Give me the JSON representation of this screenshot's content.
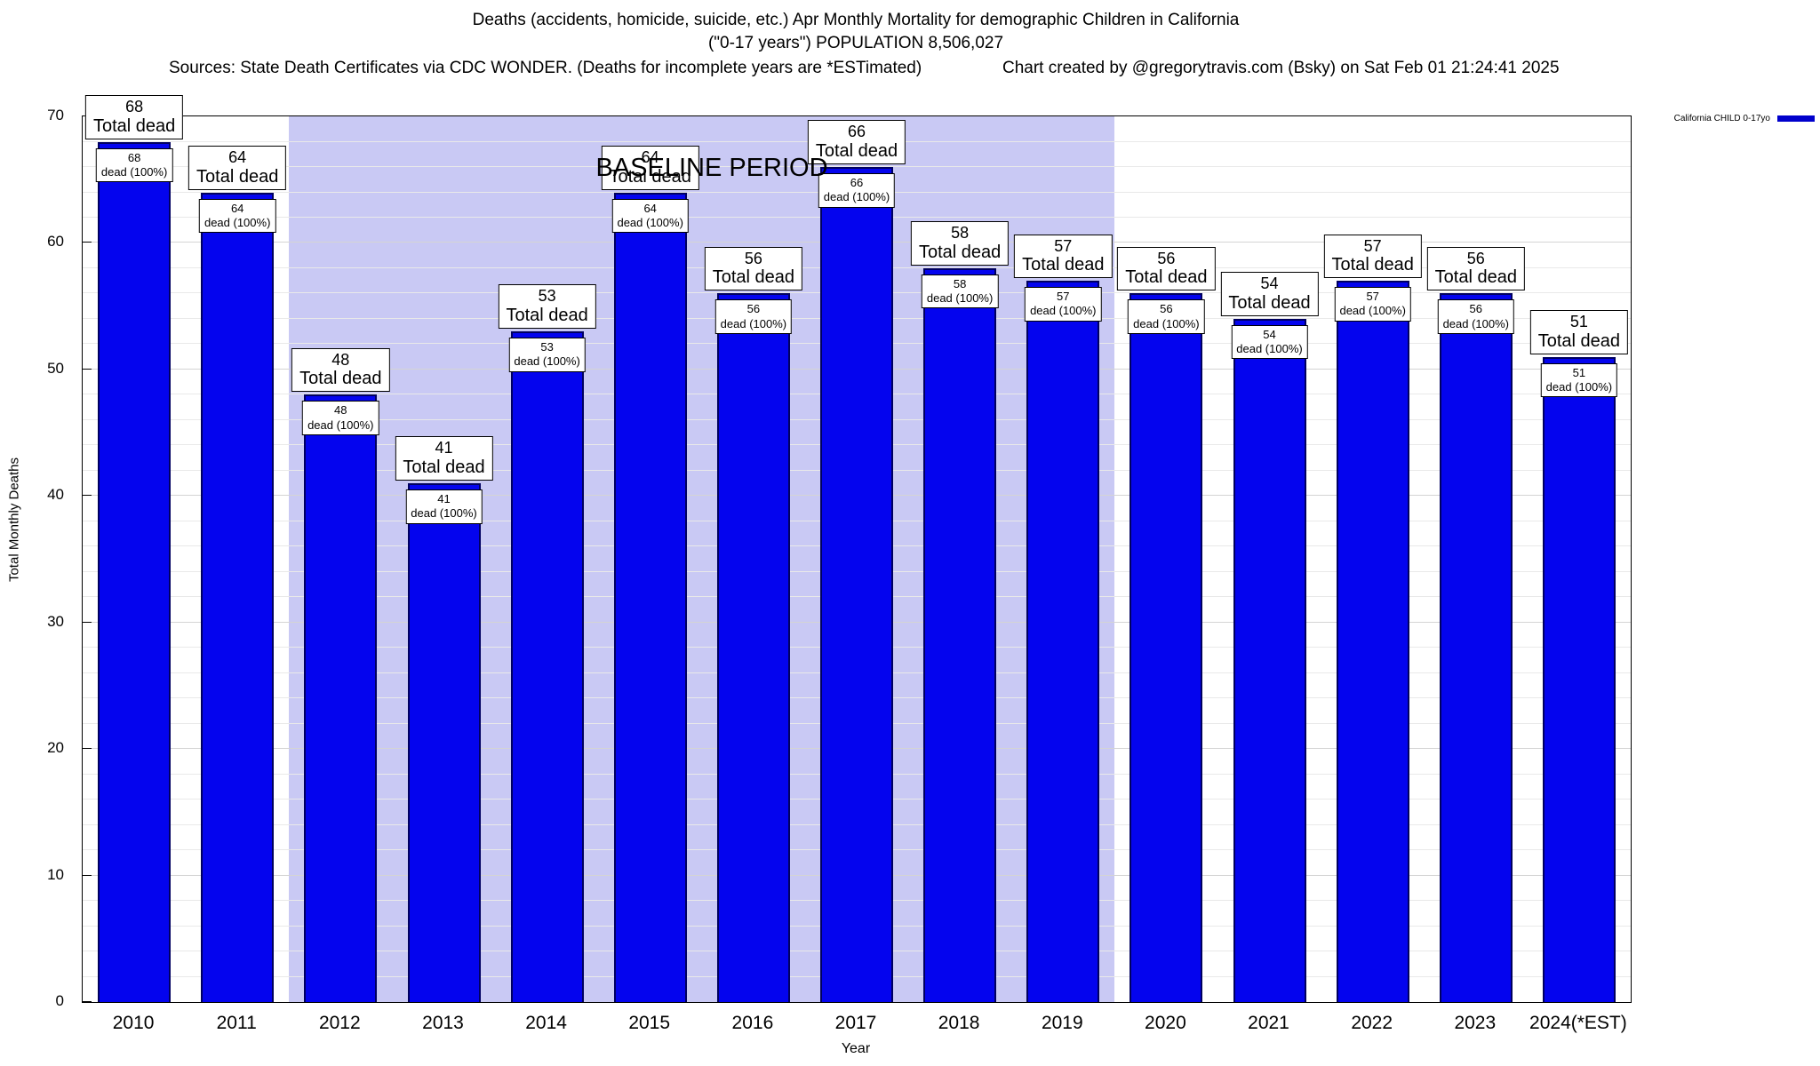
{
  "page": {
    "title": "Deaths (accidents, homicide, suicide, etc.) Apr Monthly Mortality for demographic Children in California",
    "subtitle": "(\"0-17 years\") POPULATION 8,506,027",
    "sources": "Sources: State Death Certificates via CDC WONDER. (Deaths for incomplete years are *ESTimated)",
    "credit": "Chart created by @gregorytravis.com (Bsky) on Sat Feb 01 21:24:41 2025"
  },
  "chart_data": {
    "type": "bar",
    "title": "Deaths (accidents, homicide, suicide, etc.) Apr Monthly Mortality for demographic Children in California",
    "subtitle": "(\"0-17 years\") POPULATION 8,506,027",
    "categories": [
      "2010",
      "2011",
      "2012",
      "2013",
      "2014",
      "2015",
      "2016",
      "2017",
      "2018",
      "2019",
      "2020",
      "2021",
      "2022",
      "2023",
      "2024(*EST)"
    ],
    "values": [
      68,
      64,
      48,
      41,
      53,
      64,
      56,
      66,
      58,
      57,
      56,
      54,
      57,
      56,
      51
    ],
    "xlabel": "Year",
    "ylabel": "Total Monthly Deaths",
    "ylim": [
      0,
      70
    ],
    "ytick_step": 10,
    "minor_grid_step": 2,
    "grid": true,
    "bar_color": "#0404ee",
    "bar_border_color": "#000060",
    "bar_top_label_suffix": "Total dead",
    "bar_inner_label_suffix": "dead (100%)",
    "baseline_region": {
      "label": "BASELINE PERIOD",
      "start_category": "2012",
      "end_category": "2019",
      "color": "#c9c9f4"
    },
    "legend": {
      "label": "California CHILD 0-17yo",
      "swatch_color": "#0000cc",
      "position": "top-right"
    }
  }
}
